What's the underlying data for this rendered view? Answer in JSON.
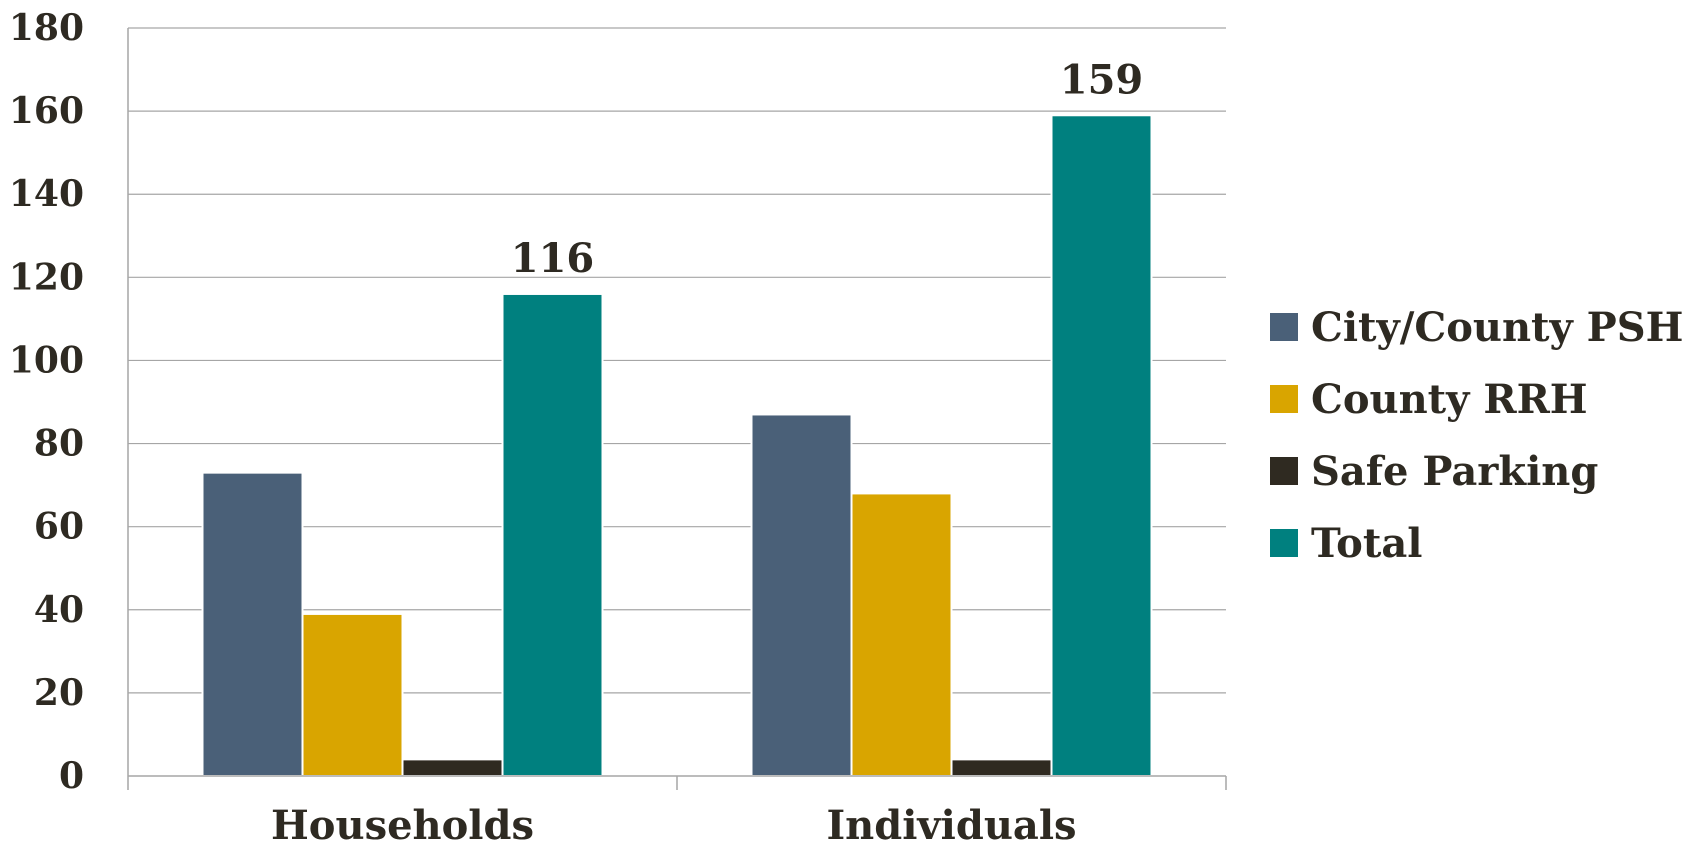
{
  "chart_data": {
    "type": "bar",
    "title": "",
    "xlabel": "",
    "ylabel": "",
    "categories": [
      "Households",
      "Individuals"
    ],
    "series": [
      {
        "name": "City/County PSH",
        "values": [
          73,
          87
        ],
        "color": "#4a6078"
      },
      {
        "name": "County RRH",
        "values": [
          39,
          68
        ],
        "color": "#d9a500"
      },
      {
        "name": "Safe Parking",
        "values": [
          4,
          4
        ],
        "color": "#2f2a21"
      },
      {
        "name": "Total",
        "values": [
          116,
          159
        ],
        "color": "#00807f"
      }
    ],
    "data_labels": [
      {
        "category": "Households",
        "series": "Total",
        "text": "116"
      },
      {
        "category": "Individuals",
        "series": "Total",
        "text": "159"
      }
    ],
    "ylim": [
      0,
      180
    ],
    "yticks": [
      "0",
      "20",
      "40",
      "60",
      "80",
      "100",
      "120",
      "140",
      "160",
      "180"
    ],
    "grid": true,
    "legend_position": "right"
  }
}
